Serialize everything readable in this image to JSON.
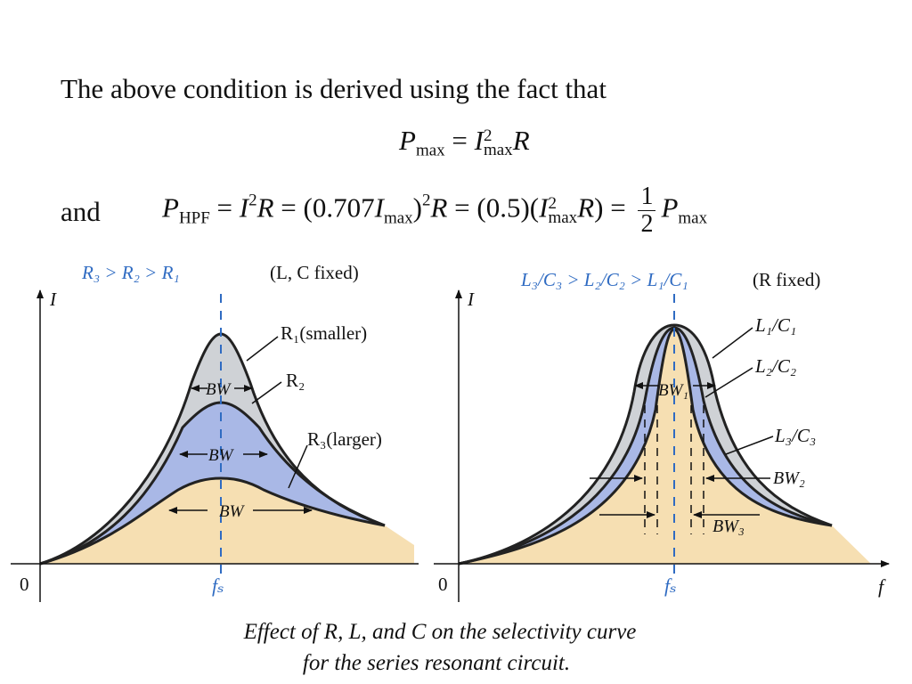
{
  "intro_text": "The above condition is derived using the fact that",
  "and_text": "and",
  "eq1": {
    "P": "P",
    "P_sub": "max",
    "equals": "=",
    "I": "I",
    "I_sup": "2",
    "I_sub": "max",
    "R": "R"
  },
  "eq2": {
    "P": "P",
    "P_sub": "HPF",
    "eq_a": "=",
    "I": "I",
    "I_sup": "2",
    "R_a": "R",
    "eq_b": "=",
    "open": "(0.707",
    "I_b": "I",
    "I_b_sub": "max",
    "close": ")",
    "close_sup": "2",
    "R_b": "R",
    "eq_c": "=",
    "half_factor": "(0.5)(",
    "I_c": "I",
    "I_c_sup": "2",
    "I_c_sub": "max",
    "R_c": "R",
    "close_c": ")",
    "eq_d": "=",
    "frac_num": "1",
    "frac_den": "2",
    "P_end": "P",
    "P_end_sub": "max"
  },
  "left_diagram": {
    "condition": "R₃ > R₂ > R₁",
    "fixed_note": "(L, C fixed)",
    "y_axis": "I",
    "origin": "0",
    "fs_label": "fₛ",
    "curve_labels": [
      "R₁(smaller)",
      "R₂",
      "R₃(larger)"
    ],
    "bw_labels": [
      "BW",
      "BW",
      "BW"
    ]
  },
  "right_diagram": {
    "condition": "L₃/C₃ > L₂/C₂ > L₁/C₁",
    "fixed_note": "(R  fixed)",
    "y_axis": "I",
    "x_axis": "f",
    "origin": "0",
    "fs_label": "fₛ",
    "curve_labels": [
      "L₁/C₁",
      "L₂/C₂",
      "L₃/C₃"
    ],
    "bw_labels": [
      "BW₁",
      "BW₂",
      "BW₃"
    ]
  },
  "caption": {
    "line1": "Effect of R, L, and C on the selectivity curve",
    "line2": "for the series resonant circuit."
  },
  "colors": {
    "fill_gray": "#cfd2d6",
    "fill_blue": "#a9b8e6",
    "fill_tan": "#f6dfb2",
    "label_blue": "#2f6bc2",
    "curve": "#222222"
  }
}
